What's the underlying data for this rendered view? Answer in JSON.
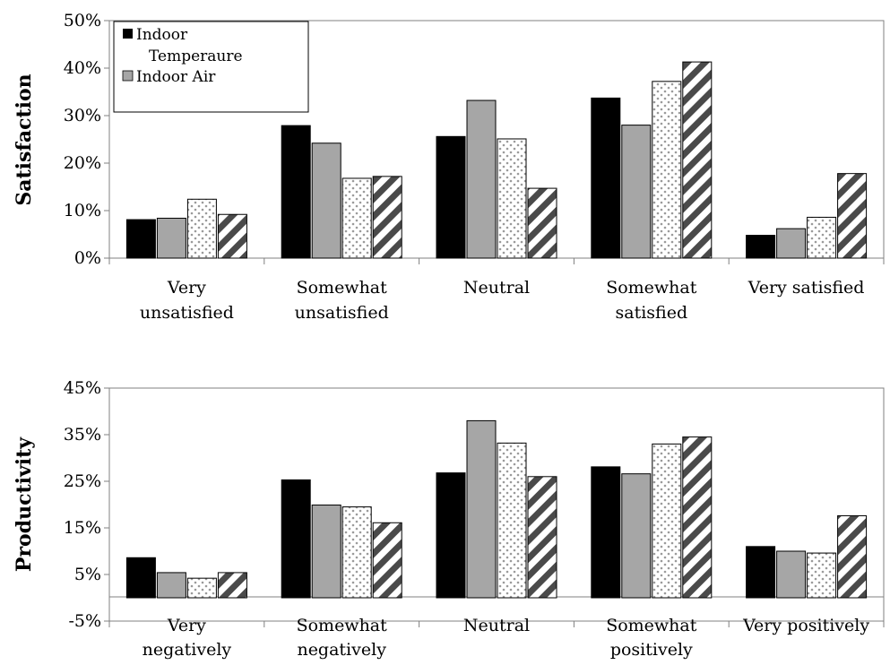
{
  "chart_data": [
    {
      "type": "bar",
      "ylabel": "Satisfaction",
      "ylim": [
        0,
        50
      ],
      "y_ticks": [
        "0%",
        "10%",
        "20%",
        "30%",
        "40%",
        "50%"
      ],
      "categories": [
        [
          "Very",
          "unsatisfied"
        ],
        [
          "Somewhat",
          "unsatisfied"
        ],
        [
          "Neutral"
        ],
        [
          "Somewhat",
          "satisfied"
        ],
        [
          "Very satisfied"
        ]
      ],
      "legend": {
        "placement": "top-left",
        "entries": [
          {
            "lines": [
              "Indoor",
              "Temperaure"
            ],
            "swatch": "solid-black"
          },
          {
            "lines": [
              "Indoor Air"
            ],
            "swatch": "solid-gray"
          }
        ]
      },
      "series": [
        {
          "name": "Indoor Temperaure",
          "pattern": "solid-black",
          "values": [
            8.1,
            27.9,
            25.6,
            33.7,
            4.8
          ]
        },
        {
          "name": "Indoor Air",
          "pattern": "solid-gray",
          "values": [
            8.4,
            24.2,
            33.2,
            28.0,
            6.2
          ]
        },
        {
          "pattern": "dots",
          "values": [
            12.4,
            16.8,
            25.1,
            37.2,
            8.6
          ]
        },
        {
          "pattern": "diagonal-stripes",
          "values": [
            9.2,
            17.2,
            14.7,
            41.3,
            17.8
          ]
        }
      ]
    },
    {
      "type": "bar",
      "ylabel": "Productivity",
      "ylim": [
        -5,
        45
      ],
      "y_ticks": [
        "-5%",
        "5%",
        "15%",
        "25%",
        "35%",
        "45%"
      ],
      "categories": [
        [
          "Very",
          "negatively"
        ],
        [
          "Somewhat",
          "negatively"
        ],
        [
          "Neutral"
        ],
        [
          "Somewhat",
          "positively"
        ],
        [
          "Very positively"
        ]
      ],
      "series": [
        {
          "pattern": "solid-black",
          "values": [
            8.6,
            25.3,
            26.8,
            28.1,
            11.0
          ]
        },
        {
          "pattern": "solid-gray",
          "values": [
            5.4,
            19.9,
            38.0,
            26.6,
            10.0
          ]
        },
        {
          "pattern": "dots",
          "values": [
            4.2,
            19.5,
            33.2,
            33.0,
            9.6
          ]
        },
        {
          "pattern": "diagonal-stripes",
          "values": [
            5.4,
            16.1,
            26.0,
            34.5,
            17.6
          ]
        }
      ]
    }
  ]
}
